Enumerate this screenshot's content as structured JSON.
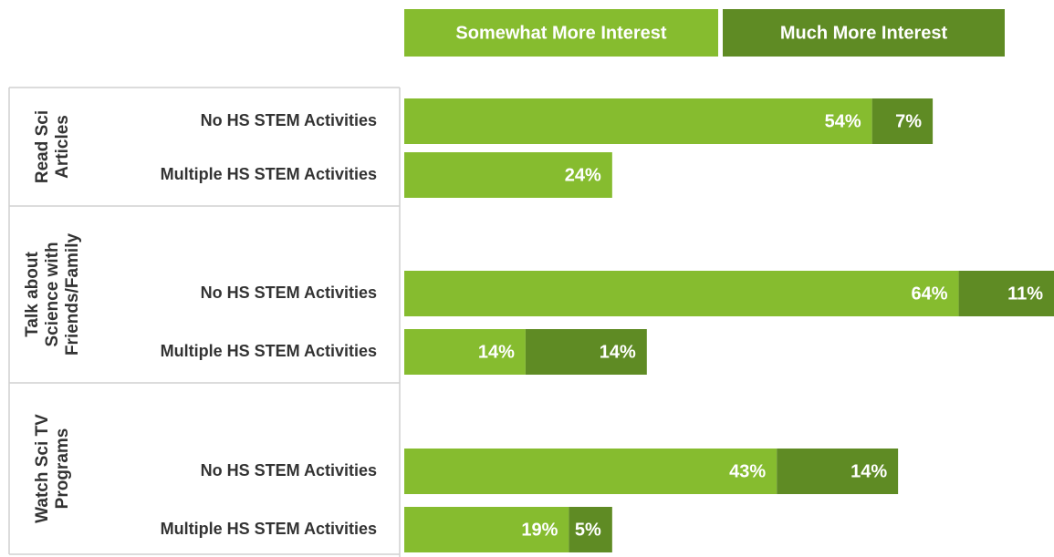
{
  "chart_data": {
    "type": "stacked-bar-horizontal",
    "groups": [
      [
        "Read Sci",
        "Articles"
      ],
      [
        "Talk about",
        "Science with",
        "Friends/Family"
      ],
      [
        "Watch Sci TV",
        "Programs"
      ]
    ],
    "categories": [
      "No HS STEM Activities",
      "Multiple HS STEM Activities",
      "No HS STEM Activities",
      "Multiple HS STEM Activities",
      "No HS STEM Activities",
      "Multiple HS STEM Activities"
    ],
    "series": [
      {
        "name": "Somewhat More Interest",
        "color": "#86bc2f",
        "values": [
          54,
          24,
          64,
          14,
          43,
          19
        ],
        "value_labels": [
          "54%",
          "24%",
          "64%",
          "14%",
          "43%",
          "19%"
        ]
      },
      {
        "name": "Much More Interest",
        "color": "#5f8b24",
        "values": [
          7,
          null,
          11,
          14,
          14,
          5
        ],
        "value_labels": [
          "7%",
          null,
          "11%",
          "14%",
          "14%",
          "5%"
        ]
      }
    ]
  }
}
